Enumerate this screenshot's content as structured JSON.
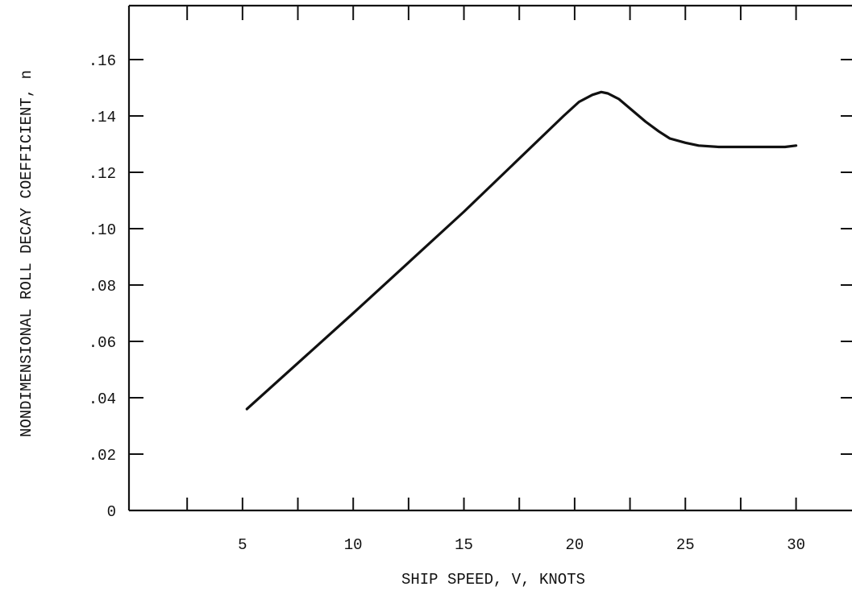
{
  "chart_data": {
    "type": "line",
    "title": "",
    "xlabel": "SHIP SPEED, V, KNOTS",
    "ylabel": "NONDIMENSIONAL ROLL DECAY COEFFICIENT, n",
    "xlim": [
      0,
      30.5
    ],
    "ylim": [
      0,
      0.18
    ],
    "x_ticks": [
      5,
      10,
      15,
      20,
      25,
      30
    ],
    "x_tick_labels": [
      "5",
      "10",
      "15",
      "20",
      "25",
      "30"
    ],
    "x_minor_ticks": [
      2.5,
      7.5,
      12.5,
      17.5,
      22.5,
      27.5
    ],
    "y_ticks": [
      0,
      0.02,
      0.04,
      0.06,
      0.08,
      0.1,
      0.12,
      0.14,
      0.16
    ],
    "y_tick_labels": [
      "0",
      ".02",
      ".04",
      ".06",
      ".08",
      ".10",
      ".12",
      ".14",
      ".16"
    ],
    "grid": false,
    "legend": "none",
    "series": [
      {
        "x": [
          5.2,
          10,
          15,
          19.5,
          20.2,
          20.8,
          21.2,
          21.5,
          22.0,
          22.6,
          23.2,
          23.8,
          24.3,
          25.0,
          25.6,
          26.5,
          27.5,
          28.5,
          29.5,
          30.0
        ],
        "y": [
          0.036,
          0.07,
          0.106,
          0.14,
          0.145,
          0.1475,
          0.1485,
          0.148,
          0.146,
          0.142,
          0.138,
          0.1345,
          0.132,
          0.1305,
          0.1295,
          0.129,
          0.129,
          0.129,
          0.129,
          0.1295
        ]
      }
    ],
    "line_color": "#111111"
  }
}
